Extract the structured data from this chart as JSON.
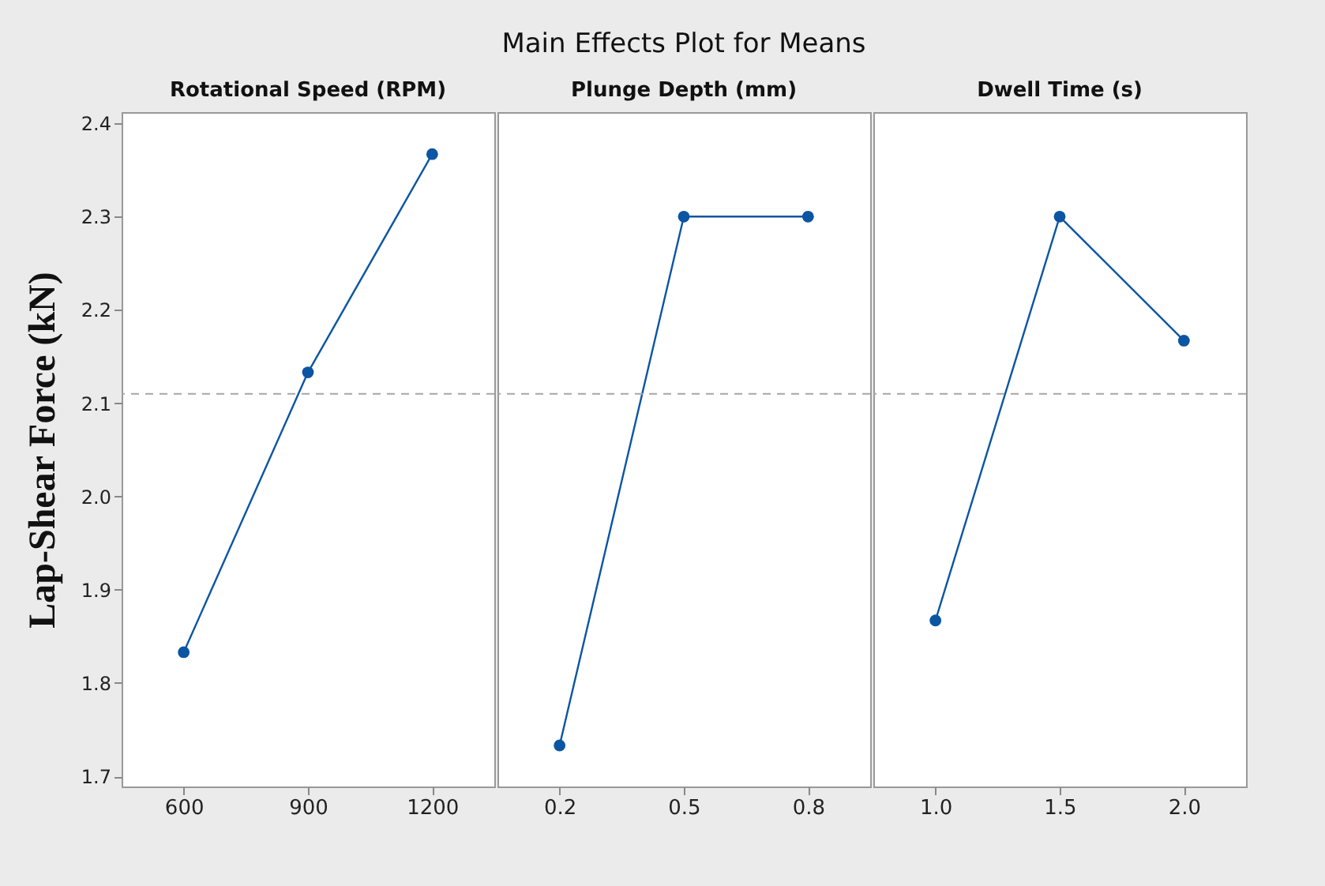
{
  "chart_data": [
    {
      "type": "line",
      "xlabel": "Rotational Speed (RPM)",
      "ylabel": "Lap-Shear Force (kN)",
      "categories": [
        "600",
        "900",
        "1200"
      ],
      "series": [
        {
          "color": "#0b55a3",
          "values": [
            1.833,
            2.133,
            2.367
          ]
        }
      ],
      "ylim": [
        1.689,
        2.412
      ],
      "yticks": [
        1.7,
        1.8,
        1.9,
        {
          "value": 2,
          "label": "2.0"
        },
        2.1,
        2.2,
        2.3,
        2.4
      ],
      "marker": "circle",
      "grid": false,
      "ref_lines": [
        {
          "axis": "y",
          "value": 2.11,
          "color": "#a6a6a6",
          "line_style": "dashed"
        }
      ]
    },
    {
      "type": "line",
      "title": "Main Effects Plot for Means",
      "xlabel": "Plunge Depth (mm)",
      "categories": [
        "0.2",
        "0.5",
        "0.8"
      ],
      "series": [
        {
          "color": "#0b55a3",
          "values": [
            1.733,
            2.3,
            2.3
          ]
        }
      ],
      "ylim": [
        1.689,
        2.412
      ],
      "tick_labels": "x",
      "marker": "circle",
      "grid": false,
      "ref_lines": [
        {
          "axis": "y",
          "value": 2.11,
          "color": "#a6a6a6",
          "line_style": "dashed"
        }
      ]
    },
    {
      "type": "line",
      "xlabel": "Dwell Time (s)",
      "categories": [
        "1.0",
        "1.5",
        "2.0"
      ],
      "series": [
        {
          "color": "#0b55a3",
          "values": [
            1.867,
            2.3,
            2.167
          ]
        }
      ],
      "ylim": [
        1.689,
        2.412
      ],
      "tick_labels": "x",
      "marker": "circle",
      "grid": false,
      "ref_lines": [
        {
          "axis": "y",
          "value": 2.11,
          "color": "#a6a6a6",
          "line_style": "dashed"
        }
      ]
    }
  ]
}
